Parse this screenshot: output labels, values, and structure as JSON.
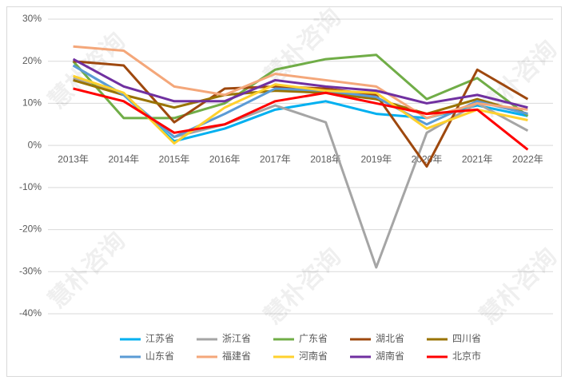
{
  "chart_data": {
    "type": "line",
    "watermark": "慧朴咨询",
    "categories": [
      "2013年",
      "2014年",
      "2015年",
      "2016年",
      "2017年",
      "2018年",
      "2019年",
      "2020年",
      "2021年",
      "2022年"
    ],
    "ylim": [
      -40,
      30
    ],
    "yticks": [
      {
        "value": -40,
        "label": "-40%"
      },
      {
        "value": -30,
        "label": "-30%"
      },
      {
        "value": -20,
        "label": "-20%"
      },
      {
        "value": -10,
        "label": "-10%"
      },
      {
        "value": 0,
        "label": "0%"
      },
      {
        "value": 10,
        "label": "10%"
      },
      {
        "value": 20,
        "label": "20%"
      },
      {
        "value": 30,
        "label": "30%"
      }
    ],
    "grid": true,
    "legend": "bottom",
    "series": [
      {
        "name": "江苏省",
        "color": "#00b0f0",
        "values": [
          19,
          12,
          1,
          4,
          8.5,
          10.5,
          7.5,
          6.5,
          9.5,
          7
        ]
      },
      {
        "name": "浙江省",
        "color": "#a5a5a5",
        "values": [
          16,
          12,
          2,
          5,
          9.5,
          5.5,
          -29,
          3,
          10,
          3.5
        ]
      },
      {
        "name": "广东省",
        "color": "#70ad47",
        "values": [
          20,
          6.5,
          6.5,
          10,
          18,
          20.5,
          21.5,
          11,
          16,
          7
        ]
      },
      {
        "name": "湖北省",
        "color": "#9e480e",
        "values": [
          20,
          19,
          5.5,
          13.5,
          14,
          13.5,
          12,
          -5,
          18,
          11
        ]
      },
      {
        "name": "四川省",
        "color": "#997300",
        "values": [
          15.5,
          12,
          9,
          12,
          13,
          12.5,
          11,
          7.5,
          11,
          7.5
        ]
      },
      {
        "name": "山东省",
        "color": "#5b9bd5",
        "values": [
          19,
          12,
          2,
          7.5,
          13.5,
          13,
          11.5,
          5,
          10.5,
          7.5
        ]
      },
      {
        "name": "福建省",
        "color": "#f4a77a",
        "values": [
          23.5,
          22.5,
          14,
          12,
          17,
          15.5,
          14,
          6.5,
          10,
          8.5
        ]
      },
      {
        "name": "河南省",
        "color": "#ffd12e",
        "values": [
          16.5,
          12.5,
          0.5,
          9,
          14.5,
          13,
          12.5,
          4,
          8.5,
          6
        ]
      },
      {
        "name": "湖南省",
        "color": "#7030a0",
        "values": [
          20.5,
          14,
          10.5,
          10.5,
          15.5,
          14,
          13,
          10,
          12,
          9
        ]
      },
      {
        "name": "北京市",
        "color": "#ff0000",
        "values": [
          13.5,
          10.5,
          3,
          5,
          10.5,
          12.5,
          10,
          7.5,
          8.5,
          -1
        ]
      }
    ]
  }
}
